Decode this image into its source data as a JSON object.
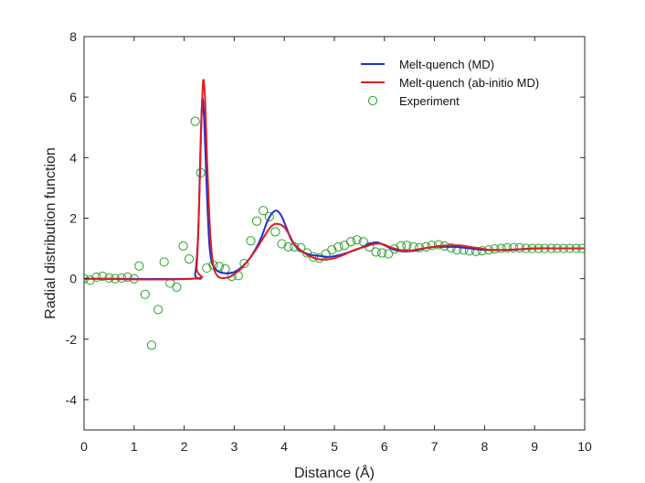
{
  "chart_data": {
    "type": "line",
    "xlabel": "Distance (Å)",
    "ylabel": "Radial distribution function",
    "xlim": [
      0,
      10
    ],
    "ylim": [
      -5,
      8
    ],
    "xticks": [
      0,
      1,
      2,
      3,
      4,
      5,
      6,
      7,
      8,
      9,
      10
    ],
    "yticks": [
      -4,
      -2,
      0,
      2,
      4,
      6,
      8
    ],
    "grid": false,
    "legend_position": "top-right",
    "series": [
      {
        "name": "Melt-quench (MD)",
        "color": "#1f2fd6",
        "kind": "line",
        "x": [
          0,
          2.15,
          2.22,
          2.28,
          2.32,
          2.36,
          2.4,
          2.45,
          2.5,
          2.55,
          2.62,
          2.7,
          2.8,
          2.9,
          3.0,
          3.15,
          3.3,
          3.45,
          3.55,
          3.65,
          3.75,
          3.85,
          3.95,
          4.05,
          4.15,
          4.3,
          4.5,
          4.7,
          4.9,
          5.1,
          5.3,
          5.5,
          5.7,
          5.85,
          6.0,
          6.2,
          6.4,
          6.6,
          6.8,
          7.0,
          7.2,
          7.4,
          7.6,
          7.8,
          8.0,
          8.2,
          8.5,
          9.0,
          9.5,
          10.0
        ],
        "y": [
          0,
          0,
          0.15,
          1.5,
          4.0,
          5.9,
          5.2,
          3.0,
          1.2,
          0.55,
          0.32,
          0.22,
          0.18,
          0.18,
          0.22,
          0.38,
          0.65,
          1.05,
          1.4,
          1.85,
          2.15,
          2.25,
          2.05,
          1.65,
          1.25,
          0.95,
          0.8,
          0.75,
          0.72,
          0.78,
          0.88,
          1.0,
          1.15,
          1.2,
          1.1,
          0.95,
          0.9,
          0.92,
          1.0,
          1.05,
          1.05,
          1.05,
          1.02,
          0.98,
          0.95,
          0.95,
          0.95,
          1.0,
          1.0,
          1.0
        ]
      },
      {
        "name": "Melt-quench (ab-initio MD)",
        "color": "#e01c1c",
        "kind": "line",
        "x": [
          0,
          2.18,
          2.25,
          2.3,
          2.34,
          2.38,
          2.42,
          2.46,
          2.52,
          2.58,
          2.65,
          2.72,
          2.8,
          2.9,
          3.0,
          3.15,
          3.3,
          3.45,
          3.6,
          3.7,
          3.8,
          3.9,
          4.0,
          4.1,
          4.2,
          4.4,
          4.6,
          4.8,
          5.0,
          5.2,
          5.4,
          5.6,
          5.8,
          5.95,
          6.1,
          6.3,
          6.5,
          6.7,
          6.9,
          7.1,
          7.3,
          7.5,
          7.7,
          7.9,
          8.1,
          8.4,
          8.8,
          9.2,
          9.6,
          10.0
        ],
        "y": [
          0,
          0,
          0.4,
          2.5,
          5.0,
          6.55,
          5.8,
          3.8,
          1.5,
          0.45,
          0.12,
          0.03,
          0.02,
          0.05,
          0.15,
          0.35,
          0.65,
          1.0,
          1.4,
          1.65,
          1.8,
          1.8,
          1.7,
          1.45,
          1.15,
          0.85,
          0.68,
          0.63,
          0.68,
          0.8,
          0.95,
          1.05,
          1.15,
          1.15,
          1.05,
          0.95,
          0.92,
          0.98,
          1.03,
          1.08,
          1.1,
          1.1,
          1.05,
          1.0,
          0.95,
          0.95,
          0.98,
          1.0,
          1.0,
          1.0
        ]
      },
      {
        "name": "Experiment",
        "color": "#2ca02c",
        "kind": "scatter",
        "x": [
          0.0,
          0.12,
          0.25,
          0.37,
          0.5,
          0.62,
          0.75,
          0.87,
          1.0,
          1.1,
          1.22,
          1.35,
          1.48,
          1.6,
          1.72,
          1.85,
          1.98,
          2.1,
          2.22,
          2.33,
          2.45,
          2.58,
          2.7,
          2.82,
          2.95,
          3.08,
          3.2,
          3.33,
          3.45,
          3.58,
          3.7,
          3.82,
          3.95,
          4.08,
          4.2,
          4.33,
          4.45,
          4.58,
          4.7,
          4.83,
          4.95,
          5.08,
          5.2,
          5.33,
          5.45,
          5.58,
          5.7,
          5.83,
          5.95,
          6.08,
          6.2,
          6.33,
          6.45,
          6.58,
          6.7,
          6.83,
          6.95,
          7.08,
          7.2,
          7.33,
          7.45,
          7.58,
          7.7,
          7.83,
          7.95,
          8.08,
          8.2,
          8.33,
          8.45,
          8.58,
          8.7,
          8.83,
          8.95,
          9.08,
          9.2,
          9.33,
          9.45,
          9.58,
          9.7,
          9.83,
          9.95
        ],
        "y": [
          0.0,
          -0.05,
          0.05,
          0.08,
          0.02,
          0.0,
          0.02,
          0.05,
          0.0,
          0.42,
          -0.52,
          -2.2,
          -1.02,
          0.55,
          -0.15,
          -0.28,
          1.08,
          0.65,
          5.2,
          3.5,
          0.35,
          0.45,
          0.4,
          0.32,
          0.08,
          0.1,
          0.5,
          1.25,
          1.9,
          2.25,
          2.05,
          1.55,
          1.15,
          1.05,
          1.05,
          1.02,
          0.85,
          0.72,
          0.68,
          0.82,
          0.95,
          1.05,
          1.1,
          1.22,
          1.28,
          1.22,
          1.05,
          0.88,
          0.85,
          0.82,
          0.98,
          1.08,
          1.1,
          1.05,
          1.02,
          1.05,
          1.1,
          1.12,
          1.08,
          1.02,
          0.95,
          0.95,
          0.92,
          0.9,
          0.92,
          0.95,
          0.98,
          1.0,
          1.02,
          1.02,
          1.02,
          1.0,
          1.0,
          1.0,
          1.0,
          1.0,
          1.0,
          1.0,
          1.0,
          1.0,
          1.0
        ]
      }
    ]
  }
}
